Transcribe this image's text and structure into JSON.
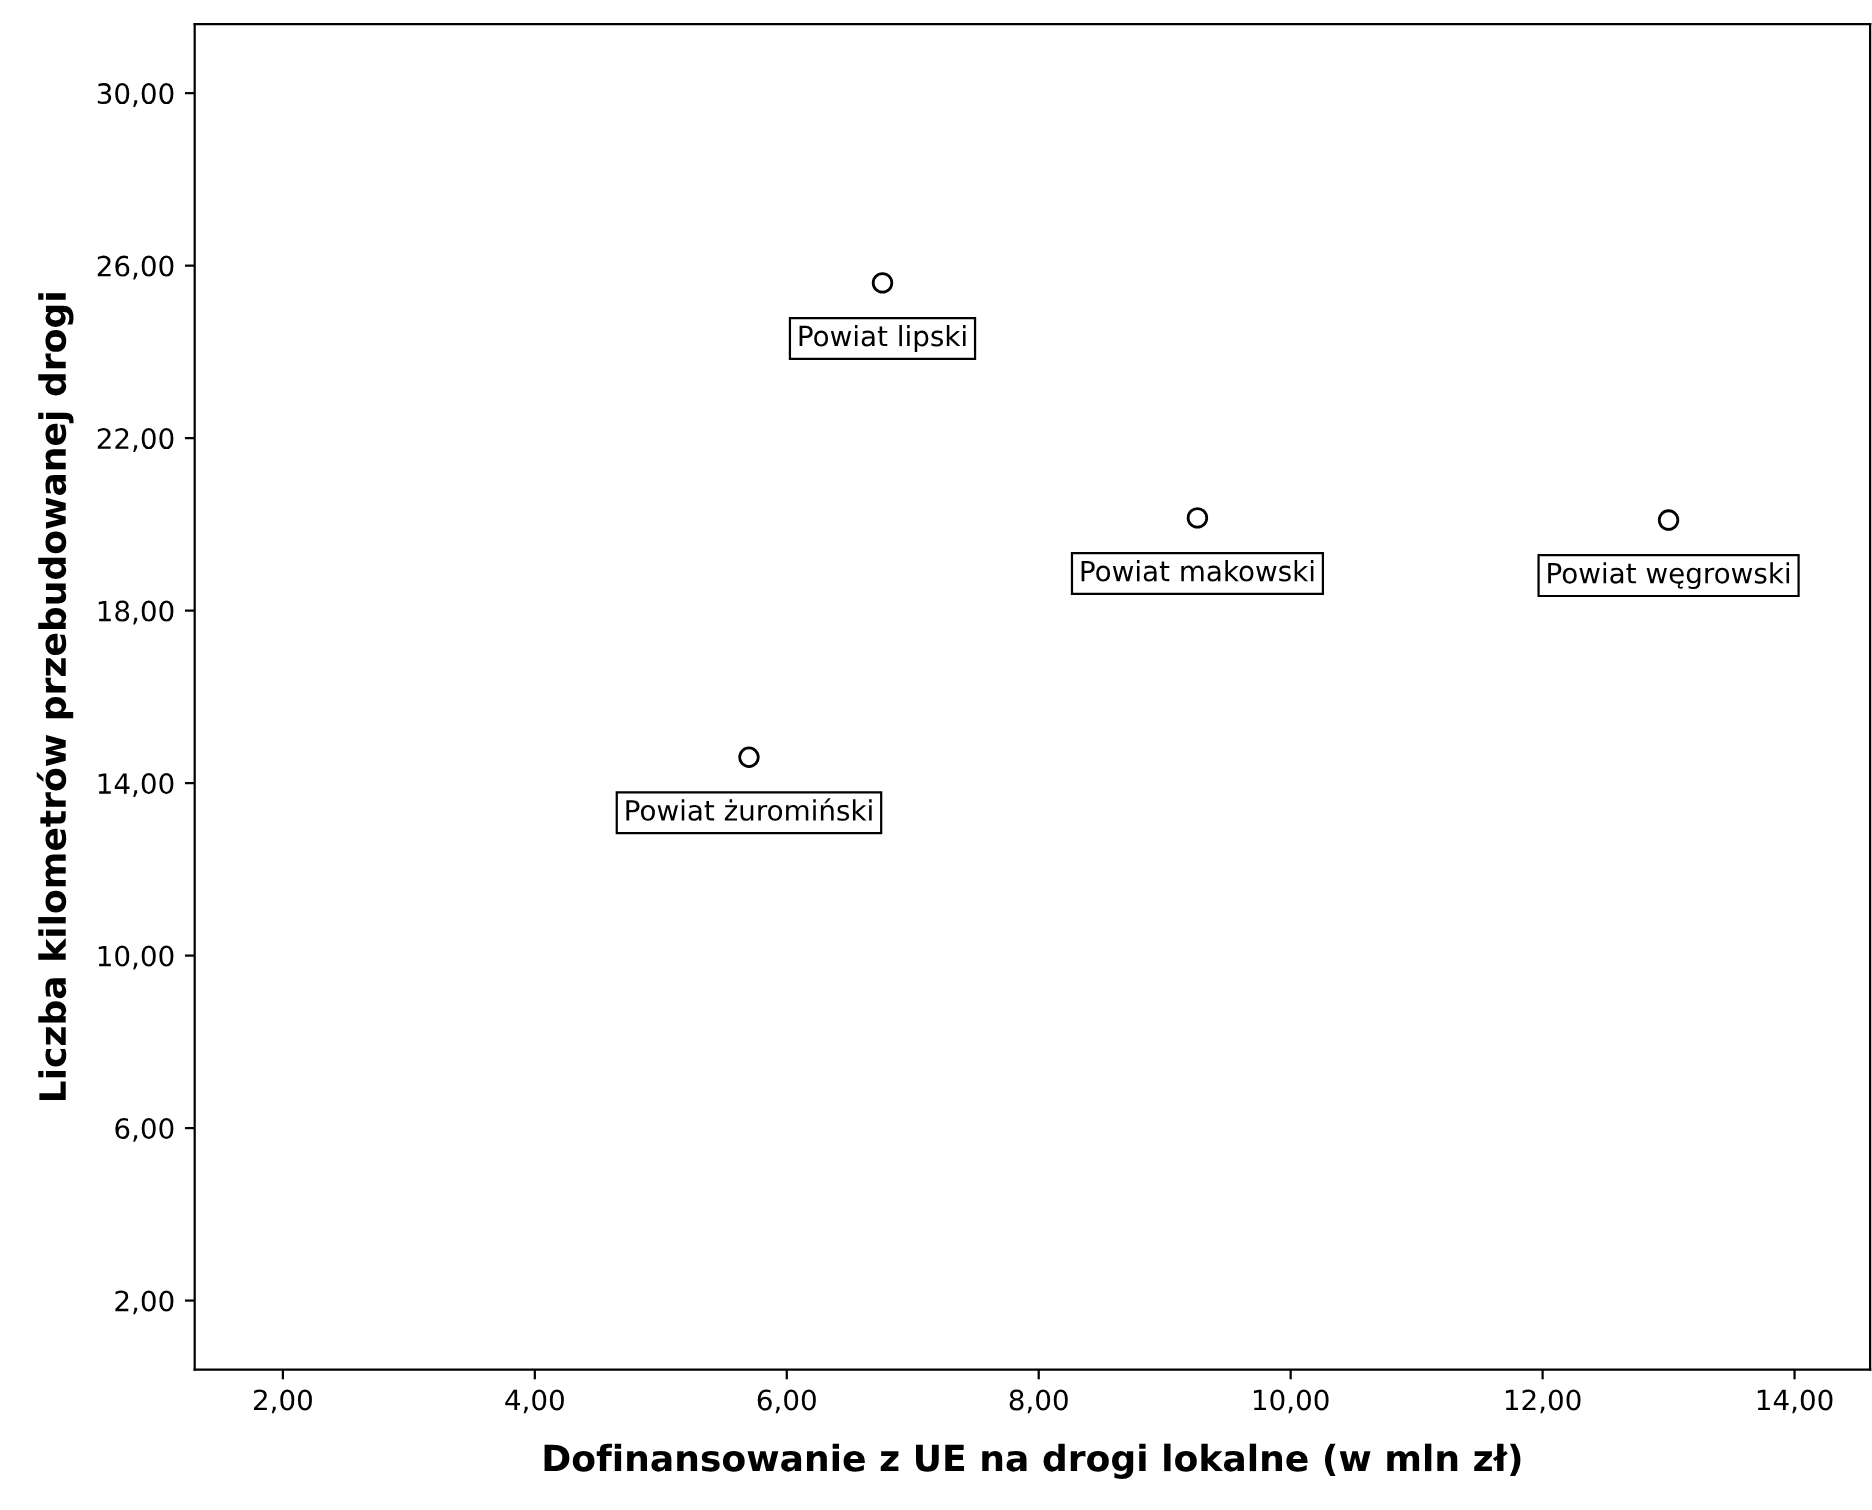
{
  "chart_data": {
    "type": "scatter",
    "xlabel": "Dofinansowanie z UE na drogi lokalne (w mln zł)",
    "ylabel": "Liczba kilometrów przebudowanej drogi",
    "x": [
      6.76,
      9.26,
      13.0,
      5.7
    ],
    "series": [
      {
        "color": "#000000",
        "values": [
          25.6,
          20.15,
          20.1,
          14.6
        ]
      }
    ],
    "marker": "circle",
    "grid": false,
    "legend": false,
    "xlim": [
      1.3,
      14.6
    ],
    "ylim": [
      0.4,
      31.6
    ],
    "xticks": [
      {
        "value": 2,
        "label": "2,00"
      },
      {
        "value": 4,
        "label": "4,00"
      },
      {
        "value": 6,
        "label": "6,00"
      },
      {
        "value": 8,
        "label": "8,00"
      },
      {
        "value": 10,
        "label": "10,00"
      },
      {
        "value": 12,
        "label": "12,00"
      },
      {
        "value": 14,
        "label": "14,00"
      }
    ],
    "yticks": [
      {
        "value": 2,
        "label": "2,00"
      },
      {
        "value": 6,
        "label": "6,00"
      },
      {
        "value": 10,
        "label": "10,00"
      },
      {
        "value": 14,
        "label": "14,00"
      },
      {
        "value": 18,
        "label": "18,00"
      },
      {
        "value": 22,
        "label": "22,00"
      },
      {
        "value": 26,
        "label": "26,00"
      },
      {
        "value": 30,
        "label": "30,00"
      }
    ],
    "annotations": [
      {
        "text": "Powiat lipski",
        "x": 6.76,
        "y": 25.6
      },
      {
        "text": "Powiat makowski",
        "x": 9.26,
        "y": 20.15
      },
      {
        "text": "Powiat węgrowski",
        "x": 13.0,
        "y": 20.1
      },
      {
        "text": "Powiat żuromiński",
        "x": 5.7,
        "y": 14.6
      }
    ]
  }
}
